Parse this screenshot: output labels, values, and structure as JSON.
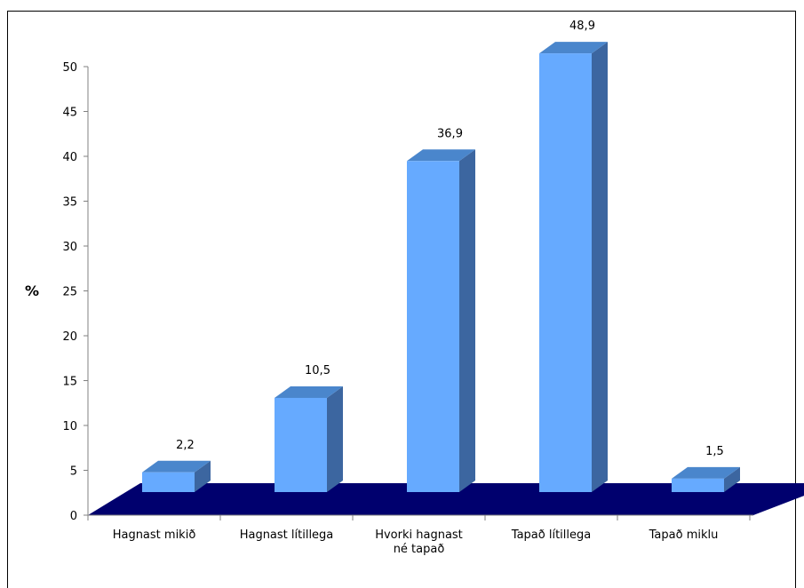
{
  "chart_data": {
    "type": "bar",
    "categories": [
      [
        "Hagnast mikið"
      ],
      [
        "Hagnast lítillega"
      ],
      [
        "Hvorki hagnast",
        "né tapað"
      ],
      [
        "Tapað lítillega"
      ],
      [
        "Tapað miklu"
      ]
    ],
    "values": [
      2.2,
      10.5,
      36.9,
      48.9,
      1.5
    ],
    "data_labels": [
      "2,2",
      "10,5",
      "36,9",
      "48,9",
      "1,5"
    ],
    "ylabel": "%",
    "ylim": [
      0,
      50
    ],
    "yticks": [
      0,
      5,
      10,
      15,
      20,
      25,
      30,
      35,
      40,
      45,
      50
    ],
    "grid": false,
    "style": "3d-column",
    "colors": {
      "bar_front": "#66aaff",
      "bar_top": "#4a86cc",
      "bar_side": "#3c66a0",
      "floor": "#00006e"
    }
  }
}
